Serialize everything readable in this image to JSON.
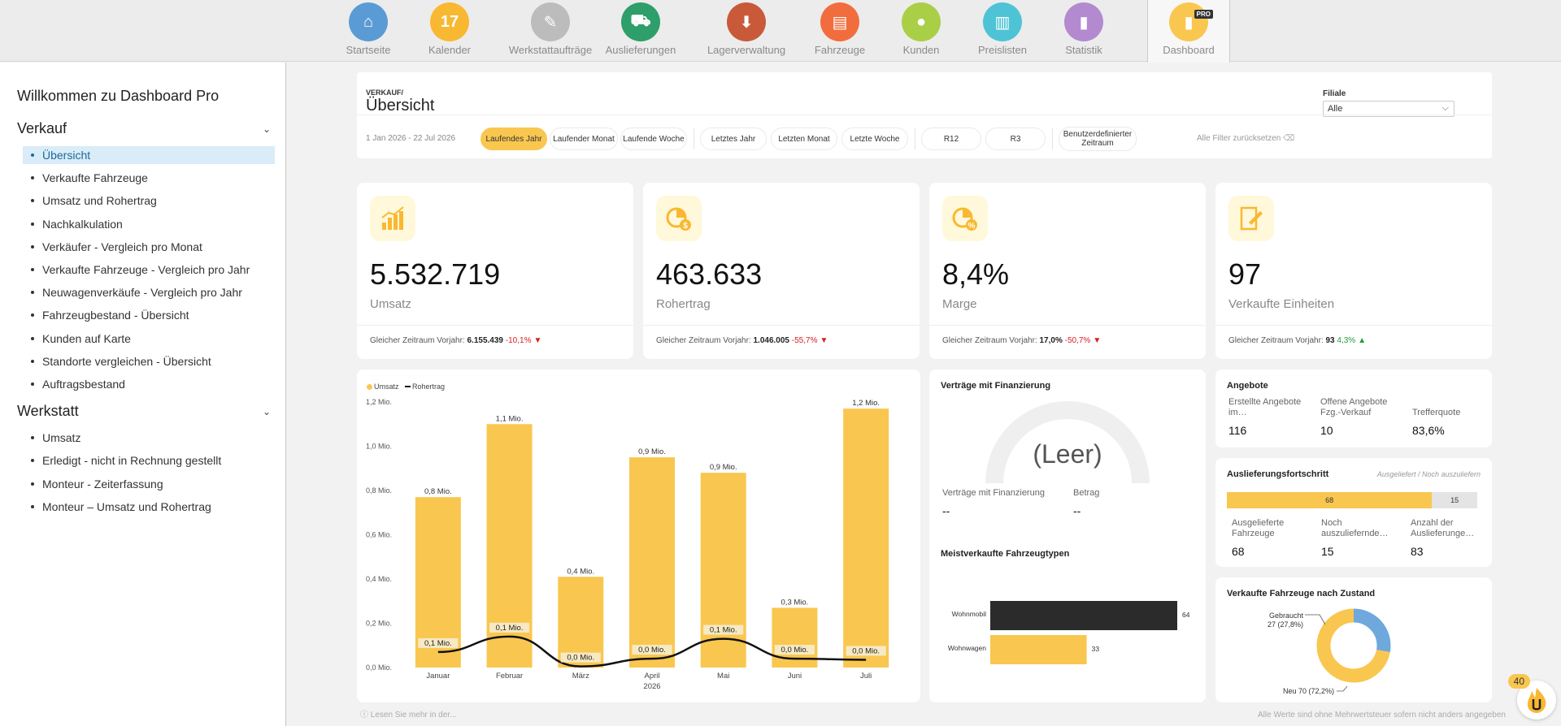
{
  "colors": {
    "accent": "#f9c74f",
    "sidebar_active_bg": "#d9ecf7",
    "negative": "#d62020",
    "positive": "#1f9d3a",
    "line": "#111111",
    "dark_bar": "#2b2b2b",
    "donut_blue": "#6fa8dc"
  },
  "nav": [
    {
      "label": "Startseite",
      "icon": "house-icon",
      "color": "#5b9bd5"
    },
    {
      "label": "Kalender",
      "icon": "calendar-icon",
      "color": "#f9b832"
    },
    {
      "label": "Werkstattaufträge",
      "icon": "wrench-clipboard-icon",
      "color": "#bcbcbc"
    },
    {
      "label": "Auslieferungen",
      "icon": "truck-icon",
      "color": "#2e9e6b"
    },
    {
      "label": "Lagerverwaltung",
      "icon": "box-icon",
      "color": "#c85a3a"
    },
    {
      "label": "Fahrzeuge",
      "icon": "clipboard-icon",
      "color": "#f26d3d"
    },
    {
      "label": "Kunden",
      "icon": "user-icon",
      "color": "#a9cf46"
    },
    {
      "label": "Preislisten",
      "icon": "document-icon",
      "color": "#4ec3d6"
    },
    {
      "label": "Statistik",
      "icon": "bar-chart-icon",
      "color": "#b38ad0"
    },
    {
      "label": "Dashboard",
      "icon": "dashboard-icon",
      "color": "#f9c74f",
      "badge": "PRO"
    }
  ],
  "sidebar": {
    "welcome": "Willkommen zu Dashboard Pro",
    "sections": [
      {
        "title": "Verkauf",
        "items": [
          "Übersicht",
          "Verkaufte Fahrzeuge",
          "Umsatz und Rohertrag",
          "Nachkalkulation",
          "Verkäufer - Vergleich pro Monat",
          "Verkaufte Fahrzeuge - Vergleich pro Jahr",
          "Neuwagenverkäufe - Vergleich pro Jahr",
          "Fahrzeugbestand - Übersicht",
          "Kunden auf Karte",
          "Standorte vergleichen - Übersicht",
          "Auftragsbestand"
        ]
      },
      {
        "title": "Werkstatt",
        "items": [
          "Umsatz",
          "Erledigt - nicht in Rechnung gestellt",
          "Monteur - Zeiterfassung",
          "Monteur – Umsatz und Rohertrag"
        ]
      }
    ]
  },
  "header": {
    "breadcrumb": "VERKAUF/",
    "title": "Übersicht",
    "filiale_label": "Filiale",
    "filiale_value": "Alle"
  },
  "filters": {
    "date_range": "1 Jan 2026 - 22 Jul 2026",
    "group1": [
      "Laufendes Jahr",
      "Laufender Monat",
      "Laufende Woche"
    ],
    "group2": [
      "Letztes Jahr",
      "Letzten Monat",
      "Letzte Woche"
    ],
    "group3": [
      "R12",
      "R3",
      "Benutzerdefinierter Zeitraum"
    ],
    "reset": "Alle Filter zurücksetzen"
  },
  "kpis": [
    {
      "value": "5.532.719",
      "label": "Umsatz",
      "foot_prefix": "Gleicher Zeitraum Vorjahr:",
      "foot_prev": "6.155.439",
      "foot_delta": "-10,1%",
      "trend": "down",
      "icon": "bar-chart-trend-icon"
    },
    {
      "value": "463.633",
      "label": "Rohertrag",
      "foot_prefix": "Gleicher Zeitraum Vorjahr:",
      "foot_prev": "1.046.005",
      "foot_delta": "-55,7%",
      "trend": "down",
      "icon": "pie-dollar-icon"
    },
    {
      "value": "8,4%",
      "label": "Marge",
      "foot_prefix": "Gleicher Zeitraum Vorjahr:",
      "foot_prev": "17,0%",
      "foot_delta": "-50,7%",
      "trend": "down",
      "icon": "pie-percent-icon"
    },
    {
      "value": "97",
      "label": "Verkaufte Einheiten",
      "foot_prefix": "Gleicher Zeitraum Vorjahr:",
      "foot_prev": "93",
      "foot_delta": "4,3%",
      "trend": "up",
      "icon": "document-pen-icon"
    }
  ],
  "chart_data": [
    {
      "type": "bar",
      "legend": [
        "Umsatz",
        "Rohertrag"
      ],
      "categories": [
        "Januar",
        "Februar",
        "März",
        "April",
        "Mai",
        "Juni",
        "Juli"
      ],
      "x_sublabel": "2026",
      "ylim": [
        0,
        1.2
      ],
      "yticks": [
        "0,0 Mio.",
        "0,2 Mio.",
        "0,4 Mio.",
        "0,6 Mio.",
        "0,8 Mio.",
        "1,0 Mio.",
        "1,2 Mio."
      ],
      "series": [
        {
          "name": "Umsatz",
          "type": "bar",
          "values": [
            0.77,
            1.1,
            0.41,
            0.95,
            0.88,
            0.27,
            1.17
          ],
          "labels": [
            "0,8 Mio.",
            "1,1 Mio.",
            "0,4 Mio.",
            "0,9 Mio.",
            "0,9 Mio.",
            "0,3 Mio.",
            "1,2 Mio."
          ]
        },
        {
          "name": "Rohertrag",
          "type": "line",
          "values": [
            0.07,
            0.14,
            0.005,
            0.04,
            0.13,
            0.04,
            0.035
          ],
          "labels": [
            "0,1 Mio.",
            "0,1 Mio.",
            "0,0 Mio.",
            "0,0 Mio.",
            "0,1 Mio.",
            "0,0 Mio.",
            "0,0 Mio."
          ]
        }
      ]
    },
    {
      "type": "bar",
      "orientation": "horizontal",
      "title": "Meistverkaufte Fahrzeugtypen",
      "categories": [
        "Wohnmobil",
        "Wohnwagen"
      ],
      "values": [
        64,
        33
      ],
      "xlim": [
        0,
        64
      ]
    },
    {
      "type": "pie",
      "title": "Verkaufte Fahrzeuge nach Zustand",
      "slices": [
        {
          "label": "Gebraucht",
          "value": 27,
          "percent": "27 (27,8%)"
        },
        {
          "label": "Neu",
          "value": 70,
          "percent": "70 (72,2%)"
        }
      ]
    }
  ],
  "financing": {
    "title": "Verträge mit Finanzierung",
    "gauge_text": "(Leer)",
    "label1": "Verträge mit Finanzierung",
    "label2": "Betrag",
    "value1": "--",
    "value2": "--"
  },
  "offers": {
    "title": "Angebote",
    "items": [
      {
        "label": "Erstellte Angebote im…",
        "value": "116"
      },
      {
        "label": "Offene Angebote Fzg.-Verkauf",
        "value": "10"
      },
      {
        "label": "Trefferquote",
        "value": "83,6%"
      }
    ]
  },
  "delivery": {
    "title": "Auslieferungsfortschritt",
    "subtitle": "Ausgeliefert / Noch auszuliefern",
    "delivered": 68,
    "remaining": 15,
    "items": [
      {
        "label": "Ausgelieferte Fahrzeuge",
        "value": "68"
      },
      {
        "label": "Noch auszuliefernde…",
        "value": "15"
      },
      {
        "label": "Anzahl der Auslieferunge…",
        "value": "83"
      }
    ]
  },
  "footer": {
    "left": "Lesen Sie mehr in der...",
    "right": "Alle Werte sind ohne Mehrwertsteuer sofern nicht anders angegeben",
    "chat_count": "40"
  }
}
